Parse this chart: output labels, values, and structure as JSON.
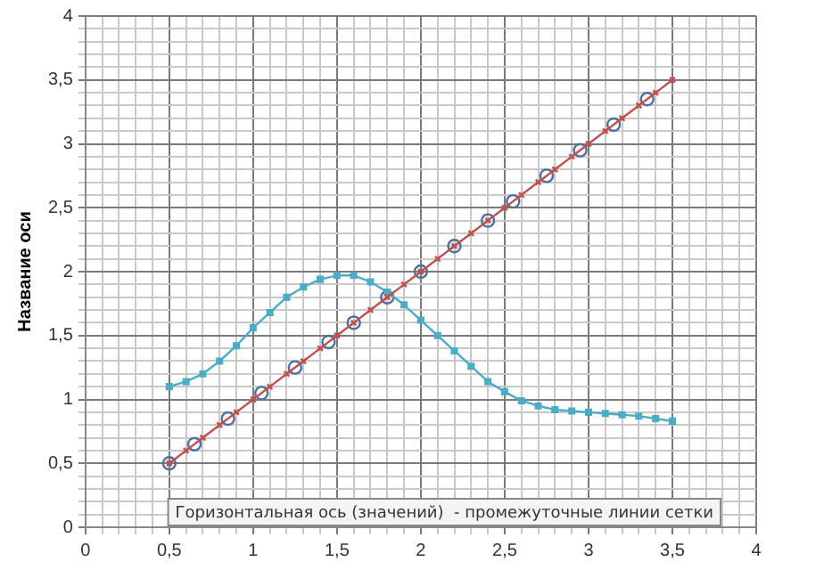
{
  "chart_data": {
    "type": "line",
    "ylabel": "Название оси",
    "annotations": [
      "Горизонтальная ось (значений)  - промежуточные линии сетки"
    ],
    "xlim": [
      0,
      4
    ],
    "ylim": [
      0,
      4
    ],
    "xticks": [
      0,
      {
        "value": 0.5,
        "label": "0,5"
      },
      1,
      {
        "value": 1.5,
        "label": "1,5"
      },
      2,
      {
        "value": 2.5,
        "label": "2,5"
      },
      3,
      {
        "value": 3.5,
        "label": "3,5"
      },
      4
    ],
    "yticks": [
      0,
      {
        "value": 0.5,
        "label": "0,5"
      },
      1,
      {
        "value": 1.5,
        "label": "1,5"
      },
      2,
      {
        "value": 2.5,
        "label": "2,5"
      },
      3,
      {
        "value": 3.5,
        "label": "3,5"
      },
      4
    ],
    "grid": true,
    "legend": false,
    "series": [
      {
        "type": "line",
        "color": "#c0504d",
        "marker": "cross",
        "x": [
          0.5,
          0.6,
          0.7,
          0.8,
          0.9,
          1.0,
          1.1,
          1.2,
          1.3,
          1.4,
          1.5,
          1.6,
          1.7,
          1.8,
          1.9,
          2.0,
          2.1,
          2.2,
          2.3,
          2.4,
          2.5,
          2.6,
          2.7,
          2.8,
          2.9,
          3.0,
          3.1,
          3.2,
          3.3,
          3.4,
          3.5
        ],
        "values": [
          0.5,
          0.6,
          0.7,
          0.8,
          0.9,
          1.0,
          1.1,
          1.2,
          1.3,
          1.4,
          1.5,
          1.6,
          1.7,
          1.8,
          1.9,
          2.0,
          2.1,
          2.2,
          2.3,
          2.4,
          2.5,
          2.6,
          2.7,
          2.8,
          2.9,
          3.0,
          3.1,
          3.2,
          3.3,
          3.4,
          3.5
        ]
      },
      {
        "type": "line",
        "color": "#4bacc6",
        "marker": "square",
        "x": [
          0.5,
          0.6,
          0.7,
          0.8,
          0.9,
          1.0,
          1.1,
          1.2,
          1.3,
          1.4,
          1.5,
          1.6,
          1.7,
          1.8,
          1.9,
          2.0,
          2.1,
          2.2,
          2.3,
          2.4,
          2.5,
          2.6,
          2.7,
          2.8,
          2.9,
          3.0,
          3.1,
          3.2,
          3.3,
          3.4,
          3.5
        ],
        "values": [
          1.1,
          1.14,
          1.2,
          1.3,
          1.42,
          1.56,
          1.68,
          1.8,
          1.88,
          1.94,
          1.97,
          1.97,
          1.92,
          1.84,
          1.74,
          1.62,
          1.5,
          1.38,
          1.26,
          1.14,
          1.06,
          0.99,
          0.95,
          0.92,
          0.91,
          0.9,
          0.89,
          0.88,
          0.87,
          0.85,
          0.83
        ]
      },
      {
        "type": "scatter",
        "color": "#4f6f9f",
        "marker": "circle",
        "x": [
          0.5,
          0.65,
          0.85,
          1.05,
          1.25,
          1.45,
          1.6,
          1.8,
          2.0,
          2.2,
          2.4,
          2.55,
          2.75,
          2.95,
          3.15,
          3.35
        ],
        "values": [
          0.5,
          0.65,
          0.85,
          1.05,
          1.25,
          1.45,
          1.6,
          1.8,
          2.0,
          2.2,
          2.4,
          2.55,
          2.75,
          2.95,
          3.15,
          3.35
        ]
      }
    ]
  }
}
